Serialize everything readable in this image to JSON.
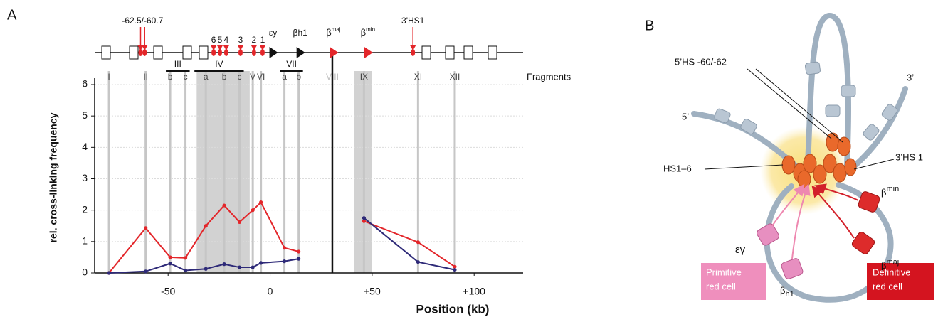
{
  "panel_labels": [
    "A",
    "B"
  ],
  "chart_data": {
    "type": "line",
    "xlabel": "Position (kb)",
    "ylabel": "rel. cross-linking frequency",
    "xlim": [
      -86,
      124
    ],
    "ylim": [
      0,
      6
    ],
    "xticks": [
      -50,
      0,
      {
        "value": 50,
        "label": "+50"
      },
      {
        "value": 100,
        "label": "+100"
      }
    ],
    "yticks": [
      0,
      1,
      2,
      3,
      4,
      5,
      6
    ],
    "grid": true,
    "x": [
      -79,
      -61,
      -49,
      -41.5,
      -31.5,
      -22.5,
      -15,
      -8.5,
      -4.5,
      7,
      14,
      30.5,
      46,
      72.5,
      90.5
    ],
    "series": [
      {
        "color": "#e3262a",
        "values": [
          0,
          1.43,
          0.5,
          0.48,
          1.5,
          2.15,
          1.62,
          2.0,
          2.25,
          0.8,
          0.68,
          null,
          1.65,
          0.98,
          0.2
        ]
      },
      {
        "color": "#2e2a78",
        "values": [
          0,
          0.05,
          0.3,
          0.08,
          0.13,
          0.28,
          0.18,
          0.18,
          0.32,
          0.37,
          0.45,
          null,
          1.75,
          0.35,
          0.1
        ]
      }
    ],
    "divider": 30.5,
    "fragments": {
      "title": "Fragments",
      "bands": [
        [
          -36,
          -10
        ],
        [
          41,
          50
        ]
      ],
      "items": [
        {
          "label": "I",
          "x": -79
        },
        {
          "label": "II",
          "x": -61
        },
        {
          "label": "b",
          "x": -49
        },
        {
          "label": "c",
          "x": -41.5
        },
        {
          "label": "a",
          "x": -31.5
        },
        {
          "label": "b",
          "x": -22.5
        },
        {
          "label": "c",
          "x": -15
        },
        {
          "label": "V",
          "x": -8.5
        },
        {
          "label": "VI",
          "x": -4.5
        },
        {
          "label": "a",
          "x": 7
        },
        {
          "label": "b",
          "x": 14
        },
        {
          "label": "VIII",
          "x": 30.5,
          "muted": true
        },
        {
          "label": "IX",
          "x": 46
        },
        {
          "label": "XI",
          "x": 72.5
        },
        {
          "label": "XII",
          "x": 90.5
        }
      ],
      "groups": [
        {
          "label": "III",
          "span": [
            -49,
            -41.5
          ]
        },
        {
          "label": "IV",
          "span": [
            -35,
            -15
          ]
        },
        {
          "label": "VII",
          "span": [
            7,
            14
          ]
        }
      ]
    },
    "gene_map": [
      {
        "label": "-62.5/-60.7",
        "x": [
          -63.5,
          -61.5
        ],
        "marker": "arrow",
        "color": "#e3262a"
      },
      {
        "label": "6",
        "x": [
          -27.7
        ],
        "marker": "arrow",
        "color": "#e3262a"
      },
      {
        "label": "5",
        "x": [
          -24.6
        ],
        "marker": "arrow",
        "color": "#e3262a"
      },
      {
        "label": "4",
        "x": [
          -21.5
        ],
        "marker": "arrow",
        "color": "#e3262a"
      },
      {
        "label": "3",
        "x": [
          -14.5
        ],
        "marker": "arrow",
        "color": "#e3262a"
      },
      {
        "label": "2",
        "x": [
          -7.9
        ],
        "marker": "arrow",
        "color": "#e3262a"
      },
      {
        "label": "1",
        "x": [
          -3.7
        ],
        "marker": "arrow",
        "color": "#e3262a"
      },
      {
        "label": "εy",
        "x": [
          1.4
        ],
        "marker": "triangle",
        "color": "#111111"
      },
      {
        "label": "βh1",
        "x": [
          14.7
        ],
        "marker": "triangle",
        "color": "#111111"
      },
      {
        "label": {
          "base": "β",
          "sup": "maj"
        },
        "x": [
          31
        ],
        "marker": "triangle",
        "color": "#e3262a"
      },
      {
        "label": {
          "base": "β",
          "sup": "min"
        },
        "x": [
          47.9
        ],
        "marker": "triangle",
        "color": "#e3262a"
      },
      {
        "label": "3'HS1",
        "x": [
          70
        ],
        "marker": "arrow",
        "color": "#e3262a"
      }
    ]
  },
  "diagram": {
    "hs_top": "5’HS -60/-62",
    "end3": "3’",
    "end5": "5’",
    "hs16": "HS1–6",
    "hs3": "3’HS 1",
    "beta_min": {
      "base": "β",
      "sup": "min"
    },
    "beta_maj": {
      "base": "β",
      "sup": "maj"
    },
    "eps": "εγ",
    "beta_h1": {
      "base": "β",
      "sub": "h1"
    },
    "primitive": [
      "Primitive",
      "red cell"
    ],
    "definitive": [
      "Definitive",
      "red cell"
    ]
  }
}
